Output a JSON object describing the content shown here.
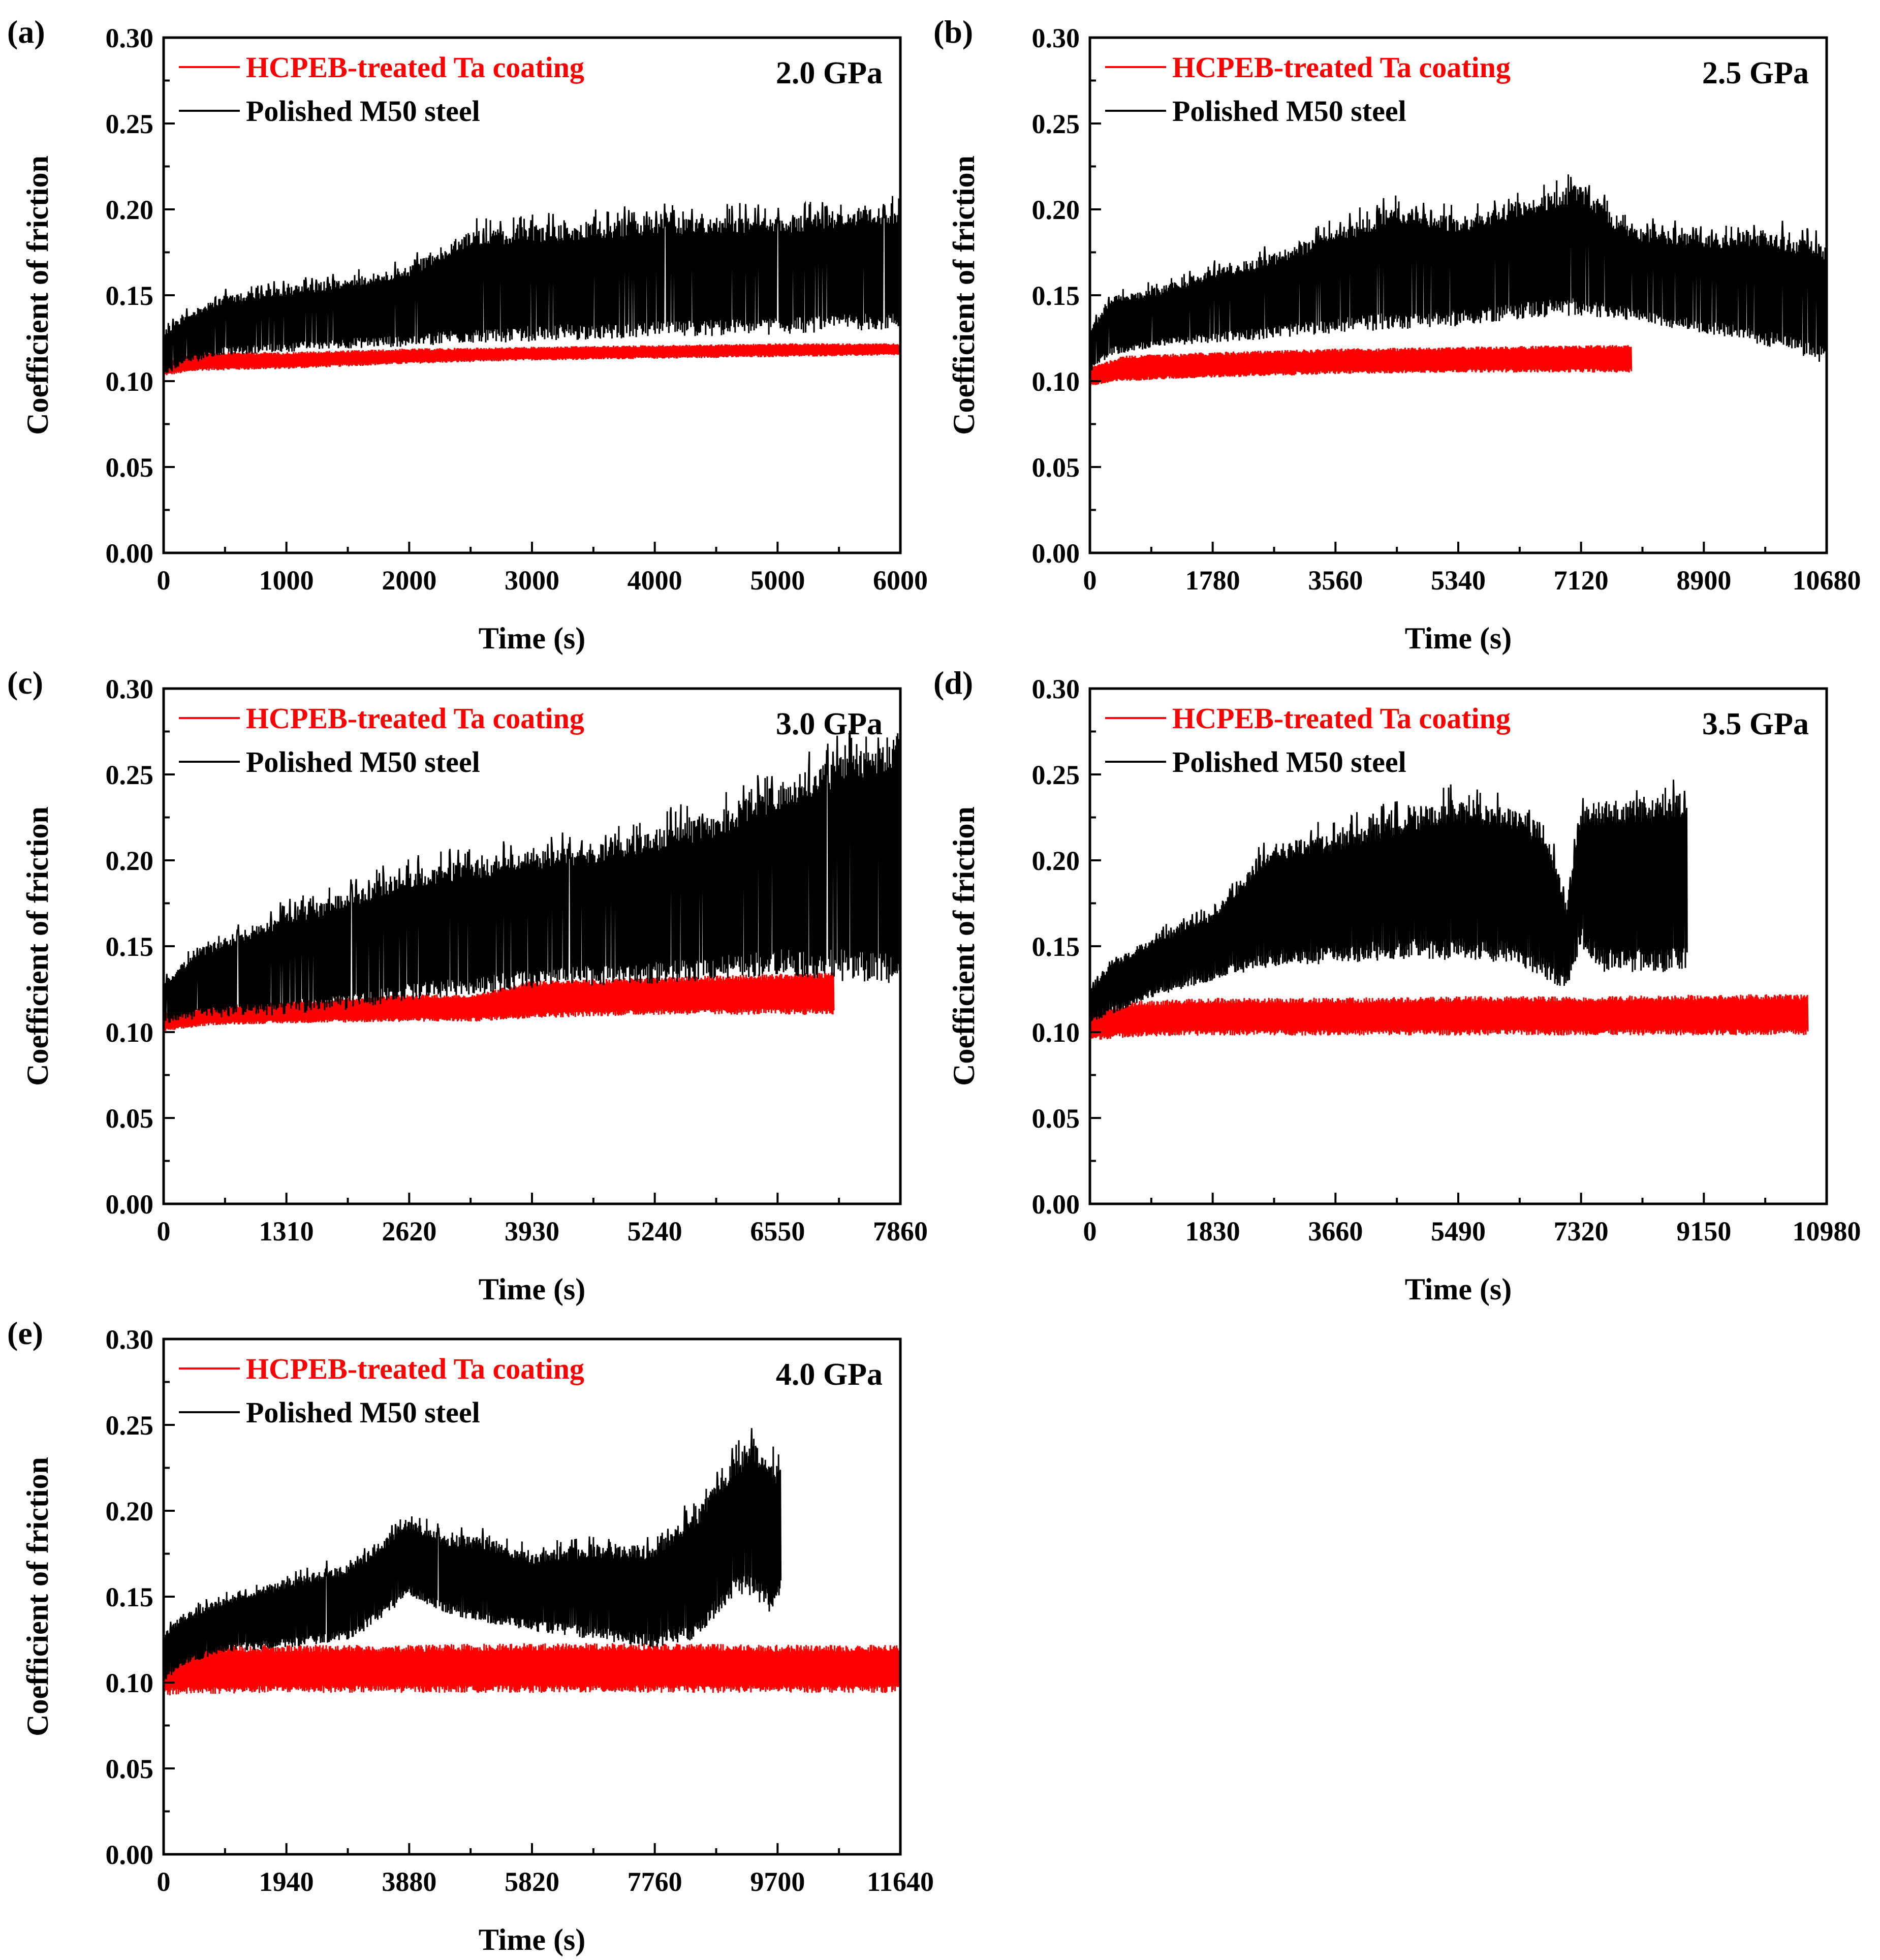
{
  "figure": {
    "y_axis_label": "Coefficient of friction",
    "x_axis_label": "Time (s)"
  },
  "colors": {
    "treated": "#ff0000",
    "steel": "#000000"
  },
  "chart_data": [
    {
      "id": "a",
      "type": "line",
      "panel_label": "(a)",
      "pressure": "2.0 GPa",
      "xlabel": "Time (s)",
      "ylabel": "Coefficient of friction",
      "xlim": [
        0,
        6000
      ],
      "ylim": [
        0,
        0.3
      ],
      "xticks": [
        "0",
        "1000",
        "2000",
        "3000",
        "4000",
        "5000",
        "6000"
      ],
      "yticks": [
        "0.00",
        "0.05",
        "0.10",
        "0.15",
        "0.20",
        "0.25",
        "0.30"
      ],
      "legend_position": "top-left",
      "series": [
        {
          "name": "HCPEB-treated Ta coating",
          "color": "#ff0000",
          "x": [
            0,
            300,
            1000,
            2000,
            3000,
            4000,
            5000,
            6000
          ],
          "lower": [
            0.103,
            0.106,
            0.107,
            0.11,
            0.112,
            0.113,
            0.114,
            0.115
          ],
          "upper": [
            0.112,
            0.117,
            0.117,
            0.119,
            0.12,
            0.121,
            0.122,
            0.122
          ]
        },
        {
          "name": "Polished M50 steel",
          "color": "#000000",
          "x": [
            0,
            200,
            500,
            1000,
            1500,
            2000,
            2500,
            3000,
            3500,
            4000,
            4500,
            5000,
            5500,
            6000
          ],
          "lower": [
            0.103,
            0.11,
            0.115,
            0.117,
            0.119,
            0.12,
            0.122,
            0.123,
            0.124,
            0.125,
            0.126,
            0.127,
            0.129,
            0.13
          ],
          "upper": [
            0.13,
            0.14,
            0.15,
            0.155,
            0.16,
            0.167,
            0.188,
            0.19,
            0.192,
            0.195,
            0.196,
            0.195,
            0.198,
            0.202
          ]
        }
      ]
    },
    {
      "id": "b",
      "type": "line",
      "panel_label": "(b)",
      "pressure": "2.5 GPa",
      "xlabel": "Time (s)",
      "ylabel": "Coefficient of friction",
      "xlim": [
        0,
        10680
      ],
      "ylim": [
        0,
        0.3
      ],
      "xticks": [
        "0",
        "1780",
        "3560",
        "5340",
        "7120",
        "8900",
        "10680"
      ],
      "yticks": [
        "0.00",
        "0.05",
        "0.10",
        "0.15",
        "0.20",
        "0.25",
        "0.30"
      ],
      "legend_position": "top-left",
      "series": [
        {
          "name": "HCPEB-treated Ta coating",
          "color": "#ff0000",
          "x": [
            0,
            500,
            1780,
            3560,
            5340,
            7120,
            7850
          ],
          "lower": [
            0.097,
            0.1,
            0.102,
            0.104,
            0.105,
            0.105,
            0.105
          ],
          "upper": [
            0.108,
            0.115,
            0.117,
            0.119,
            0.12,
            0.121,
            0.121
          ]
        },
        {
          "name": "Polished M50 steel",
          "color": "#000000",
          "x": [
            0,
            300,
            1000,
            1780,
            2700,
            3560,
            4400,
            5340,
            6200,
            7120,
            7800,
            8900,
            9800,
            10680
          ],
          "lower": [
            0.105,
            0.115,
            0.12,
            0.122,
            0.125,
            0.128,
            0.13,
            0.132,
            0.136,
            0.138,
            0.135,
            0.128,
            0.12,
            0.11
          ],
          "upper": [
            0.13,
            0.15,
            0.155,
            0.165,
            0.175,
            0.188,
            0.202,
            0.195,
            0.205,
            0.215,
            0.19,
            0.185,
            0.188,
            0.18
          ]
        }
      ]
    },
    {
      "id": "c",
      "type": "line",
      "panel_label": "(c)",
      "pressure": "3.0 GPa",
      "xlabel": "Time (s)",
      "ylabel": "Coefficient of friction",
      "xlim": [
        0,
        7860
      ],
      "ylim": [
        0,
        0.3
      ],
      "xticks": [
        "0",
        "1310",
        "2620",
        "3930",
        "5240",
        "6550",
        "7860"
      ],
      "yticks": [
        "0.00",
        "0.05",
        "0.10",
        "0.15",
        "0.20",
        "0.25",
        "0.30"
      ],
      "legend_position": "top-left",
      "series": [
        {
          "name": "HCPEB-treated Ta coating",
          "color": "#ff0000",
          "x": [
            0,
            500,
            1310,
            2620,
            3300,
            3930,
            5240,
            6550,
            7150
          ],
          "lower": [
            0.1,
            0.104,
            0.105,
            0.106,
            0.106,
            0.108,
            0.11,
            0.11,
            0.11
          ],
          "upper": [
            0.112,
            0.115,
            0.118,
            0.122,
            0.122,
            0.13,
            0.132,
            0.134,
            0.135
          ]
        },
        {
          "name": "Polished M50 steel",
          "color": "#000000",
          "x": [
            0,
            400,
            1310,
            2000,
            2620,
            3300,
            3930,
            4600,
            5240,
            5800,
            6550,
            7200,
            7860
          ],
          "lower": [
            0.105,
            0.108,
            0.11,
            0.113,
            0.118,
            0.122,
            0.125,
            0.127,
            0.128,
            0.13,
            0.133,
            0.13,
            0.125
          ],
          "upper": [
            0.13,
            0.15,
            0.17,
            0.182,
            0.195,
            0.2,
            0.205,
            0.21,
            0.218,
            0.225,
            0.245,
            0.26,
            0.275
          ]
        }
      ]
    },
    {
      "id": "d",
      "type": "line",
      "panel_label": "(d)",
      "pressure": "3.5 GPa",
      "xlabel": "Time (s)",
      "ylabel": "Coefficient of friction",
      "xlim": [
        0,
        10980
      ],
      "ylim": [
        0,
        0.3
      ],
      "xticks": [
        "0",
        "1830",
        "3660",
        "5490",
        "7320",
        "9150",
        "10980"
      ],
      "yticks": [
        "0.00",
        "0.05",
        "0.10",
        "0.15",
        "0.20",
        "0.25",
        "0.30"
      ],
      "legend_position": "top-left",
      "series": [
        {
          "name": "HCPEB-treated Ta coating",
          "color": "#ff0000",
          "x": [
            0,
            600,
            1830,
            3000,
            3660,
            5490,
            7320,
            9150,
            10700
          ],
          "lower": [
            0.095,
            0.097,
            0.098,
            0.098,
            0.098,
            0.098,
            0.098,
            0.098,
            0.098
          ],
          "upper": [
            0.112,
            0.118,
            0.12,
            0.12,
            0.12,
            0.121,
            0.121,
            0.122,
            0.122
          ]
        },
        {
          "name": "Polished M50 steel",
          "color": "#000000",
          "x": [
            0,
            300,
            900,
            1830,
            2700,
            3660,
            4500,
            5490,
            6300,
            6800,
            7100,
            7320,
            7600,
            8300,
            8900
          ],
          "lower": [
            0.105,
            0.11,
            0.12,
            0.13,
            0.138,
            0.14,
            0.142,
            0.142,
            0.14,
            0.13,
            0.125,
            0.15,
            0.135,
            0.135,
            0.135
          ],
          "upper": [
            0.125,
            0.14,
            0.155,
            0.17,
            0.21,
            0.215,
            0.225,
            0.235,
            0.23,
            0.22,
            0.175,
            0.23,
            0.235,
            0.235,
            0.24
          ]
        }
      ]
    },
    {
      "id": "e",
      "type": "line",
      "panel_label": "(e)",
      "pressure": "4.0 GPa",
      "xlabel": "Time (s)",
      "ylabel": "Coefficient of friction",
      "xlim": [
        0,
        11640
      ],
      "ylim": [
        0,
        0.3
      ],
      "xticks": [
        "0",
        "1940",
        "3880",
        "5820",
        "7760",
        "9700",
        "11640"
      ],
      "yticks": [
        "0.00",
        "0.05",
        "0.10",
        "0.15",
        "0.20",
        "0.25",
        "0.30"
      ],
      "legend_position": "top-left",
      "series": [
        {
          "name": "HCPEB-treated Ta coating",
          "color": "#ff0000",
          "x": [
            0,
            300,
            1940,
            3880,
            5820,
            7760,
            9700,
            11640
          ],
          "lower": [
            0.092,
            0.093,
            0.094,
            0.094,
            0.094,
            0.094,
            0.094,
            0.094
          ],
          "upper": [
            0.125,
            0.122,
            0.122,
            0.122,
            0.123,
            0.123,
            0.122,
            0.122
          ]
        },
        {
          "name": "Polished M50 steel",
          "color": "#000000",
          "x": [
            0,
            300,
            1000,
            1940,
            3000,
            3880,
            4500,
            5000,
            5820,
            6800,
            7760,
            8400,
            9000,
            9300,
            9600,
            9750
          ],
          "lower": [
            0.1,
            0.11,
            0.118,
            0.12,
            0.125,
            0.15,
            0.14,
            0.135,
            0.13,
            0.125,
            0.12,
            0.125,
            0.15,
            0.15,
            0.14,
            0.15
          ],
          "upper": [
            0.13,
            0.14,
            0.15,
            0.16,
            0.17,
            0.195,
            0.185,
            0.185,
            0.175,
            0.18,
            0.18,
            0.2,
            0.23,
            0.24,
            0.23,
            0.225
          ]
        }
      ]
    }
  ]
}
